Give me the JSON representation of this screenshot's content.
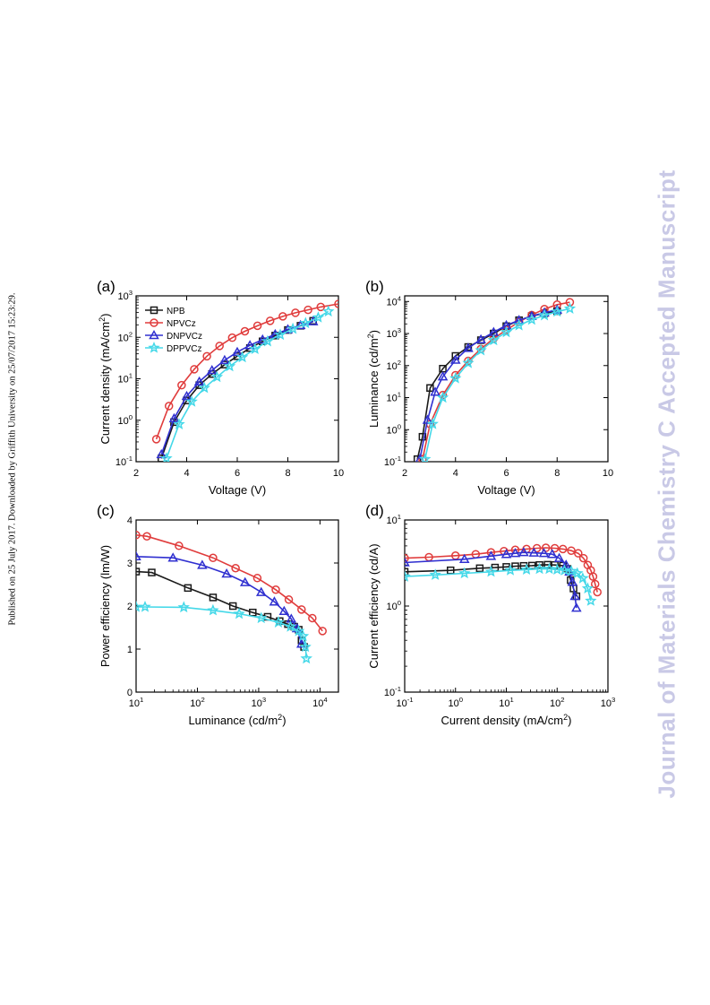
{
  "side_watermark": "Journal of Materials Chemistry C Accepted Manuscript",
  "published_note": "Published on 25 July 2017. Downloaded by Griffith University on 25/07/2017 15:23:29.",
  "series_styles": [
    {
      "name": "NPB",
      "color": "#1a1a1a",
      "marker": "square"
    },
    {
      "name": "NPVCz",
      "color": "#e03c3c",
      "marker": "circle"
    },
    {
      "name": "DNPVCz",
      "color": "#3030d0",
      "marker": "triangle"
    },
    {
      "name": "DPPVCz",
      "color": "#44d8e8",
      "marker": "star"
    }
  ],
  "chart_data": [
    {
      "panel": "(a)",
      "type": "line",
      "xlabel": "Voltage (V)",
      "ylabel_main": "Current density (mA/cm",
      "ylabel_sup": "2",
      "ylabel_tail": ")",
      "xlim": [
        2,
        10
      ],
      "ylim": [
        0.1,
        1000
      ],
      "yscale": "log",
      "xticks": [
        2,
        4,
        6,
        8,
        10
      ],
      "yticks": [
        {
          "b": "10",
          "e": "-1"
        },
        {
          "b": "10",
          "e": "0"
        },
        {
          "b": "10",
          "e": "1"
        },
        {
          "b": "10",
          "e": "2"
        },
        {
          "b": "10",
          "e": "3"
        }
      ],
      "legend": "top-left",
      "series": [
        {
          "name": "NPB",
          "x": [
            3.0,
            3.5,
            4.0,
            4.5,
            5.0,
            5.5,
            6.0,
            6.5,
            7.0,
            7.5,
            8.0,
            8.5,
            9.0
          ],
          "y": [
            0.12,
            0.9,
            3.0,
            7.0,
            13,
            22,
            35,
            55,
            80,
            110,
            150,
            190,
            250
          ]
        },
        {
          "name": "NPVCz",
          "x": [
            2.8,
            3.3,
            3.8,
            4.3,
            4.8,
            5.3,
            5.8,
            6.3,
            6.8,
            7.3,
            7.8,
            8.3,
            8.8,
            9.3,
            10.0
          ],
          "y": [
            0.35,
            2.2,
            7.0,
            17,
            35,
            62,
            98,
            140,
            190,
            250,
            320,
            390,
            460,
            540,
            640
          ]
        },
        {
          "name": "DNPVCz",
          "x": [
            3.0,
            3.5,
            4.0,
            4.5,
            5.0,
            5.5,
            6.0,
            6.5,
            7.0,
            7.5,
            8.0,
            8.5,
            9.0
          ],
          "y": [
            0.15,
            1.1,
            3.8,
            8.5,
            16,
            28,
            44,
            64,
            88,
            118,
            155,
            195,
            240
          ]
        },
        {
          "name": "DPPVCz",
          "x": [
            3.2,
            3.7,
            4.2,
            4.7,
            5.2,
            5.7,
            6.2,
            6.7,
            7.2,
            7.7,
            8.2,
            8.7,
            9.2,
            9.6
          ],
          "y": [
            0.12,
            0.8,
            2.8,
            6.0,
            11,
            20,
            33,
            52,
            80,
            115,
            160,
            220,
            300,
            420
          ]
        }
      ]
    },
    {
      "panel": "(b)",
      "type": "line",
      "xlabel": "Voltage (V)",
      "ylabel_main": "Luminance (cd/m",
      "ylabel_sup": "2",
      "ylabel_tail": ")",
      "xlim": [
        2,
        10
      ],
      "ylim": [
        0.1,
        15000
      ],
      "yscale": "log",
      "xticks": [
        2,
        4,
        6,
        8,
        10
      ],
      "yticks": [
        {
          "b": "10",
          "e": "-1"
        },
        {
          "b": "10",
          "e": "0"
        },
        {
          "b": "10",
          "e": "1"
        },
        {
          "b": "10",
          "e": "2"
        },
        {
          "b": "10",
          "e": "3"
        },
        {
          "b": "10",
          "e": "4"
        }
      ],
      "legend": "none",
      "series": [
        {
          "name": "NPB",
          "x": [
            2.5,
            2.7,
            3.0,
            3.5,
            4.0,
            4.5,
            5.0,
            5.5,
            6.0,
            6.5,
            7.0,
            7.5,
            8.0
          ],
          "y": [
            0.12,
            0.6,
            20,
            80,
            200,
            380,
            620,
            1000,
            1700,
            2600,
            3500,
            4300,
            5000
          ]
        },
        {
          "name": "NPVCz",
          "x": [
            2.7,
            3.0,
            3.5,
            4.0,
            4.5,
            5.0,
            5.5,
            6.0,
            6.5,
            7.0,
            7.5,
            8.0,
            8.5
          ],
          "y": [
            0.12,
            1.5,
            12,
            50,
            140,
            330,
            700,
            1300,
            2300,
            3800,
            5800,
            8000,
            9500
          ]
        },
        {
          "name": "DNPVCz",
          "x": [
            2.6,
            2.9,
            3.2,
            3.5,
            4.0,
            4.5,
            5.0,
            5.5,
            6.0,
            6.5,
            7.0,
            7.5,
            8.0
          ],
          "y": [
            0.12,
            2.0,
            15,
            45,
            150,
            350,
            650,
            1100,
            1800,
            2600,
            3500,
            4500,
            5500
          ]
        },
        {
          "name": "DPPVCz",
          "x": [
            2.8,
            3.1,
            3.5,
            4.0,
            4.5,
            5.0,
            5.5,
            6.0,
            6.5,
            7.0,
            7.5,
            8.0,
            8.5
          ],
          "y": [
            0.12,
            1.5,
            10,
            40,
            120,
            300,
            620,
            1100,
            1800,
            2700,
            3700,
            4800,
            6000
          ]
        }
      ]
    },
    {
      "panel": "(c)",
      "type": "line",
      "xlabel_main": "Luminance (cd/m",
      "xlabel_sup": "2",
      "xlabel_tail": ")",
      "ylabel": "Power efficiency (lm/W)",
      "xlim": [
        10,
        20000
      ],
      "xscale": "log",
      "ylim": [
        0,
        4
      ],
      "xticks": [
        {
          "b": "10",
          "e": "1"
        },
        {
          "b": "10",
          "e": "2"
        },
        {
          "b": "10",
          "e": "3"
        },
        {
          "b": "10",
          "e": "4"
        }
      ],
      "yticks": [
        0,
        1,
        2,
        3,
        4
      ],
      "legend": "none",
      "series": [
        {
          "name": "NPB",
          "x": [
            10,
            18,
            70,
            180,
            380,
            800,
            1400,
            2200,
            3000,
            3800,
            4500,
            5000,
            5500
          ],
          "y": [
            2.8,
            2.78,
            2.42,
            2.2,
            2.0,
            1.85,
            1.75,
            1.65,
            1.58,
            1.52,
            1.45,
            1.2,
            1.05
          ]
        },
        {
          "name": "NPVCz",
          "x": [
            10,
            15,
            50,
            180,
            420,
            950,
            1900,
            3100,
            5000,
            7500,
            11000
          ],
          "y": [
            3.65,
            3.62,
            3.4,
            3.12,
            2.88,
            2.65,
            2.38,
            2.15,
            1.92,
            1.72,
            1.42
          ]
        },
        {
          "name": "DNPVCz",
          "x": [
            10,
            40,
            120,
            300,
            600,
            1100,
            1800,
            2600,
            3400,
            4200,
            5000
          ],
          "y": [
            3.15,
            3.12,
            2.95,
            2.75,
            2.55,
            2.32,
            2.1,
            1.88,
            1.7,
            1.48,
            1.12
          ]
        },
        {
          "name": "DPPVCz",
          "x": [
            10,
            14,
            60,
            180,
            480,
            1100,
            2100,
            3300,
            4500,
            5300,
            5800,
            6000
          ],
          "y": [
            1.98,
            1.98,
            1.97,
            1.9,
            1.82,
            1.72,
            1.62,
            1.52,
            1.42,
            1.3,
            1.05,
            0.78
          ]
        }
      ]
    },
    {
      "panel": "(d)",
      "type": "line",
      "xlabel_main": "Current density (mA/cm",
      "xlabel_sup": "2",
      "xlabel_tail": ")",
      "ylabel": "Current efficiency (cd/A)",
      "xlim": [
        0.1,
        1000
      ],
      "xscale": "log",
      "ylim": [
        0.1,
        10
      ],
      "yscale": "log",
      "xticks": [
        {
          "b": "10",
          "e": "-1"
        },
        {
          "b": "10",
          "e": "0"
        },
        {
          "b": "10",
          "e": "1"
        },
        {
          "b": "10",
          "e": "2"
        },
        {
          "b": "10",
          "e": "3"
        }
      ],
      "yticks": [
        {
          "b": "10",
          "e": "-1"
        },
        {
          "b": "10",
          "e": "0"
        },
        {
          "b": "10",
          "e": "1"
        }
      ],
      "legend": "none",
      "series": [
        {
          "name": "NPB",
          "x": [
            0.1,
            0.8,
            3,
            6,
            10,
            15,
            22,
            32,
            45,
            65,
            90,
            130,
            160,
            185,
            210,
            240
          ],
          "y": [
            2.5,
            2.6,
            2.75,
            2.8,
            2.85,
            2.9,
            2.93,
            2.95,
            3.0,
            3.02,
            3.0,
            2.95,
            2.7,
            2.0,
            1.6,
            1.3
          ]
        },
        {
          "name": "NPVCz",
          "x": [
            0.1,
            0.3,
            1,
            2.5,
            5,
            9,
            15,
            25,
            40,
            60,
            90,
            130,
            190,
            260,
            330,
            400,
            460,
            510,
            560,
            620
          ],
          "y": [
            3.6,
            3.7,
            3.85,
            4.0,
            4.2,
            4.35,
            4.5,
            4.6,
            4.7,
            4.75,
            4.7,
            4.6,
            4.4,
            4.1,
            3.6,
            3.0,
            2.6,
            2.2,
            1.8,
            1.45
          ]
        },
        {
          "name": "DNPVCz",
          "x": [
            0.1,
            1.5,
            5,
            10,
            15,
            22,
            35,
            55,
            80,
            110,
            150,
            175,
            200,
            225,
            240
          ],
          "y": [
            3.2,
            3.5,
            3.8,
            4.0,
            4.1,
            4.2,
            4.15,
            4.1,
            4.0,
            3.6,
            3.0,
            2.5,
            1.9,
            1.3,
            0.95
          ]
        },
        {
          "name": "DPPVCz",
          "x": [
            0.1,
            0.4,
            1.5,
            5,
            12,
            25,
            45,
            70,
            100,
            140,
            190,
            250,
            320,
            400,
            460
          ],
          "y": [
            2.2,
            2.3,
            2.4,
            2.5,
            2.6,
            2.65,
            2.7,
            2.7,
            2.65,
            2.6,
            2.55,
            2.4,
            2.1,
            1.6,
            1.15
          ]
        }
      ]
    }
  ]
}
